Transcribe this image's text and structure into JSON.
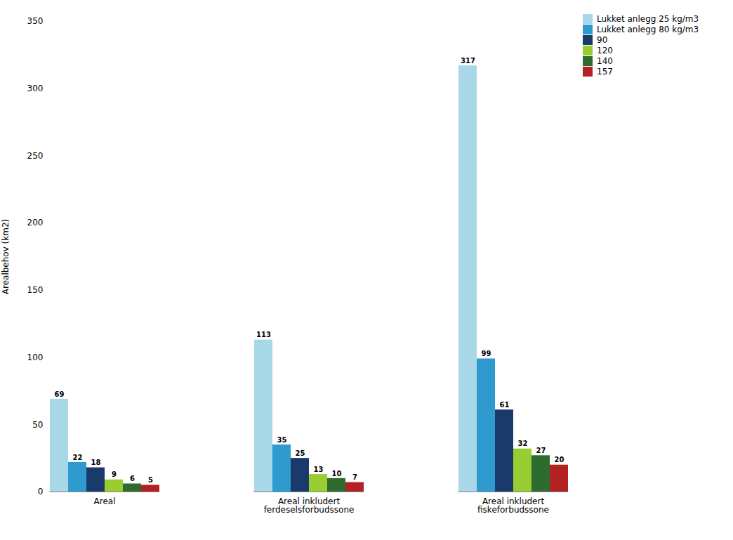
{
  "chart_data": {
    "type": "bar",
    "categories": [
      "Areal",
      "Areal inkludert\nferdeselsforbudssone",
      "Areal inkludert\nfiskeforbudssone"
    ],
    "series": [
      {
        "name": "Lukket anlegg 25 kg/m3",
        "color": "#A8D8E8",
        "values": [
          69,
          113,
          317
        ]
      },
      {
        "name": "Lukket anlegg 80 kg/m3",
        "color": "#2E9ACD",
        "values": [
          22,
          35,
          99
        ]
      },
      {
        "name": "90",
        "color": "#1A3A6B",
        "values": [
          18,
          25,
          61
        ]
      },
      {
        "name": "120",
        "color": "#9ACD32",
        "values": [
          9,
          13,
          32
        ]
      },
      {
        "name": "140",
        "color": "#2E6B2E",
        "values": [
          6,
          10,
          27
        ]
      },
      {
        "name": "157",
        "color": "#B22222",
        "values": [
          5,
          7,
          20
        ]
      }
    ],
    "ylabel": "Arealbehov (km2)",
    "ylim": [
      0,
      350
    ],
    "yticks": [
      0,
      50,
      100,
      150,
      200,
      250,
      300,
      350
    ],
    "grid": false,
    "legend": "right",
    "data_labels": true
  }
}
